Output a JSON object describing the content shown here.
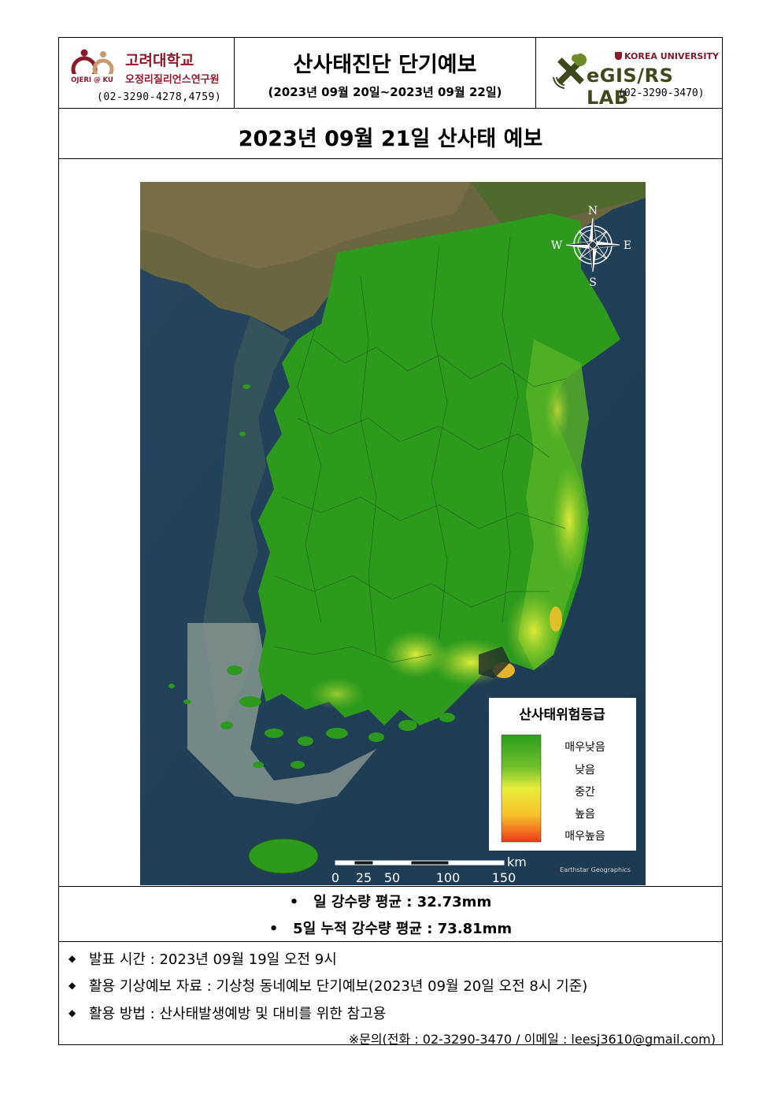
{
  "header": {
    "left": {
      "org_name": "고려대학교",
      "institute": "오정리질리언스연구원",
      "logo_text": "OJERI @ KU",
      "phone": "(02-3290-4278,4759)"
    },
    "center": {
      "title": "산사태진단 단기예보",
      "period": "(2023년 09월 20일~2023년 09월 22일)"
    },
    "right": {
      "university": "KOREA UNIVERSITY",
      "lab_name": "eGIS/RS LAB",
      "phone": "(02-3290-3470)"
    }
  },
  "forecast_title": "2023년 09월 21일 산사태 예보",
  "map": {
    "compass": {
      "n": "N",
      "e": "E",
      "s": "S",
      "w": "W"
    },
    "legend": {
      "title": "산사태위험등급",
      "levels": [
        "매우낮음",
        "낮음",
        "중간",
        "높음",
        "매우높음"
      ],
      "colors": [
        "#2e9e1e",
        "#6fc02a",
        "#e8ee3a",
        "#f7c12a",
        "#ee3a1a"
      ]
    },
    "scale_bar": {
      "unit": "km",
      "ticks": [
        "0",
        "25",
        "50",
        "100",
        "150"
      ]
    },
    "attribution": "Earthstar Geographics"
  },
  "rainfall": {
    "daily": "일 강수량 평균 : 32.73mm",
    "cumulative": "5일 누적 강수량 평균 : 73.81mm",
    "bullet": "•"
  },
  "info": {
    "bullet": "◆",
    "items": [
      "발표 시간 : 2023년 09월 19일 오전 9시",
      "활용 기상예보 자료 : 기상청 동네예보 단기예보(2023년 09월 20일 오전 8시 기준)",
      "활용 방법 : 산사태발생예방 및 대비를 위한 참고용"
    ],
    "contact": "※문의(전화 : 02-3290-3470 / 이메일 : leesj3610@gmail.com)"
  }
}
